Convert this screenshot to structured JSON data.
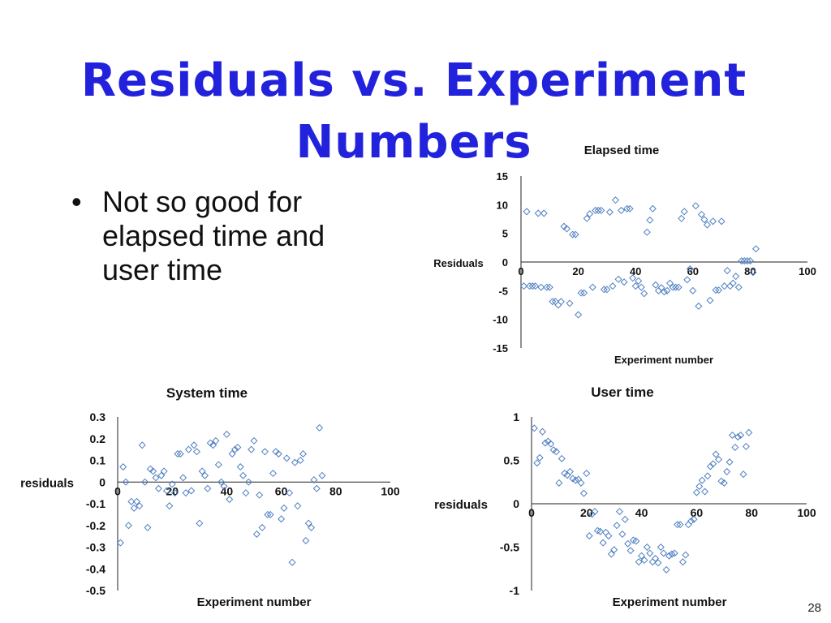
{
  "slide": {
    "title": "Residuals vs. Experiment Numbers",
    "bullets": [
      "Not so good for elapsed time and user time"
    ],
    "page_number": "28",
    "title_color": "#2222dd",
    "marker_color": "#4f7fc0"
  },
  "chart_data": [
    {
      "type": "scatter",
      "title": "Elapsed time",
      "xlabel": "Experiment number",
      "ylabel": "Residuals",
      "xlim": [
        0,
        100
      ],
      "ylim": [
        -15,
        15
      ],
      "xticks": [
        "0",
        "20",
        "40",
        "60",
        "80",
        "100"
      ],
      "yticks": [
        "15",
        "10",
        "5",
        "0",
        "-5",
        "-10",
        "-15"
      ],
      "grid": false,
      "legend": "none",
      "points": [
        [
          1,
          -4.2
        ],
        [
          2,
          8.8
        ],
        [
          3,
          -4.2
        ],
        [
          4,
          -4.2
        ],
        [
          5,
          -4.2
        ],
        [
          6,
          8.5
        ],
        [
          7,
          -4.4
        ],
        [
          8,
          8.5
        ],
        [
          9,
          -4.4
        ],
        [
          10,
          -4.4
        ],
        [
          11,
          -6.9
        ],
        [
          12,
          -6.9
        ],
        [
          13,
          -7.5
        ],
        [
          14,
          -6.9
        ],
        [
          15,
          6.2
        ],
        [
          16,
          5.8
        ],
        [
          17,
          -7.2
        ],
        [
          18,
          4.8
        ],
        [
          19,
          4.8
        ],
        [
          20,
          -9.2
        ],
        [
          21,
          -5.4
        ],
        [
          22,
          -5.4
        ],
        [
          23,
          7.6
        ],
        [
          24,
          8.4
        ],
        [
          25,
          -4.4
        ],
        [
          26,
          9.0
        ],
        [
          27,
          9.0
        ],
        [
          28,
          9.0
        ],
        [
          29,
          -4.8
        ],
        [
          30,
          -4.8
        ],
        [
          31,
          8.7
        ],
        [
          32,
          -4.2
        ],
        [
          33,
          10.8
        ],
        [
          34,
          -3.0
        ],
        [
          35,
          9.0
        ],
        [
          36,
          -3.5
        ],
        [
          37,
          9.3
        ],
        [
          38,
          9.3
        ],
        [
          39,
          -2.8
        ],
        [
          40,
          -4.2
        ],
        [
          41,
          -3.3
        ],
        [
          42,
          -4.4
        ],
        [
          43,
          -5.5
        ],
        [
          44,
          5.2
        ],
        [
          45,
          7.3
        ],
        [
          46,
          9.3
        ],
        [
          47,
          -4.0
        ],
        [
          48,
          -5.0
        ],
        [
          49,
          -4.5
        ],
        [
          50,
          -5.2
        ],
        [
          51,
          -5.0
        ],
        [
          52,
          -3.7
        ],
        [
          53,
          -4.4
        ],
        [
          54,
          -4.4
        ],
        [
          55,
          -4.4
        ],
        [
          56,
          7.6
        ],
        [
          57,
          8.8
        ],
        [
          58,
          -3.1
        ],
        [
          59,
          -1.2
        ],
        [
          60,
          -5.0
        ],
        [
          61,
          9.8
        ],
        [
          62,
          -7.7
        ],
        [
          63,
          8.3
        ],
        [
          64,
          7.4
        ],
        [
          65,
          6.5
        ],
        [
          66,
          -6.7
        ],
        [
          67,
          7.1
        ],
        [
          68,
          -4.9
        ],
        [
          69,
          -4.9
        ],
        [
          70,
          7.1
        ],
        [
          71,
          -4.2
        ],
        [
          72,
          -1.5
        ],
        [
          73,
          -4.2
        ],
        [
          74,
          -3.7
        ],
        [
          75,
          -2.5
        ],
        [
          76,
          -4.4
        ],
        [
          77,
          0.2
        ],
        [
          78,
          0.2
        ],
        [
          79,
          0.2
        ],
        [
          80,
          0.2
        ],
        [
          81,
          -1.8
        ],
        [
          82,
          2.3
        ]
      ]
    },
    {
      "type": "scatter",
      "title": "System time",
      "xlabel": "Experiment number",
      "ylabel": "residuals",
      "xlim": [
        0,
        100
      ],
      "ylim": [
        -0.5,
        0.3
      ],
      "xticks": [
        "0",
        "20",
        "40",
        "60",
        "80",
        "100"
      ],
      "yticks": [
        "0.3",
        "0.2",
        "0.1",
        "0",
        "-0.1",
        "-0.2",
        "-0.3",
        "-0.4",
        "-0.5"
      ],
      "grid": false,
      "legend": "none",
      "points": [
        [
          1,
          -0.28
        ],
        [
          2,
          0.07
        ],
        [
          3,
          0.0
        ],
        [
          4,
          -0.2
        ],
        [
          5,
          -0.09
        ],
        [
          6,
          -0.12
        ],
        [
          7,
          -0.09
        ],
        [
          8,
          -0.11
        ],
        [
          9,
          0.17
        ],
        [
          10,
          0.0
        ],
        [
          11,
          -0.21
        ],
        [
          12,
          0.06
        ],
        [
          13,
          0.05
        ],
        [
          14,
          0.02
        ],
        [
          15,
          -0.03
        ],
        [
          16,
          0.03
        ],
        [
          17,
          0.05
        ],
        [
          18,
          -0.04
        ],
        [
          19,
          -0.11
        ],
        [
          20,
          -0.01
        ],
        [
          21,
          -0.05
        ],
        [
          22,
          0.13
        ],
        [
          23,
          0.13
        ],
        [
          24,
          0.02
        ],
        [
          25,
          -0.05
        ],
        [
          26,
          0.15
        ],
        [
          27,
          -0.04
        ],
        [
          28,
          0.17
        ],
        [
          29,
          0.14
        ],
        [
          30,
          -0.19
        ],
        [
          31,
          0.05
        ],
        [
          32,
          0.03
        ],
        [
          33,
          -0.03
        ],
        [
          34,
          0.18
        ],
        [
          35,
          0.17
        ],
        [
          36,
          0.19
        ],
        [
          37,
          0.08
        ],
        [
          38,
          0.0
        ],
        [
          39,
          -0.02
        ],
        [
          40,
          0.22
        ],
        [
          41,
          -0.08
        ],
        [
          42,
          0.13
        ],
        [
          43,
          0.15
        ],
        [
          44,
          0.16
        ],
        [
          45,
          0.07
        ],
        [
          46,
          0.03
        ],
        [
          47,
          -0.05
        ],
        [
          48,
          0.0
        ],
        [
          49,
          0.15
        ],
        [
          50,
          0.19
        ],
        [
          51,
          -0.24
        ],
        [
          52,
          -0.06
        ],
        [
          53,
          -0.21
        ],
        [
          54,
          0.14
        ],
        [
          55,
          -0.15
        ],
        [
          56,
          -0.15
        ],
        [
          57,
          0.04
        ],
        [
          58,
          0.14
        ],
        [
          59,
          0.13
        ],
        [
          60,
          -0.17
        ],
        [
          61,
          -0.12
        ],
        [
          62,
          0.11
        ],
        [
          63,
          -0.05
        ],
        [
          64,
          -0.37
        ],
        [
          65,
          0.09
        ],
        [
          66,
          -0.11
        ],
        [
          67,
          0.1
        ],
        [
          68,
          0.13
        ],
        [
          69,
          -0.27
        ],
        [
          70,
          -0.19
        ],
        [
          71,
          -0.21
        ],
        [
          72,
          0.01
        ],
        [
          73,
          -0.03
        ],
        [
          74,
          0.25
        ],
        [
          75,
          0.03
        ]
      ]
    },
    {
      "type": "scatter",
      "title": "User time",
      "xlabel": "Experiment number",
      "ylabel": "residuals",
      "xlim": [
        0,
        100
      ],
      "ylim": [
        -1,
        1
      ],
      "xticks": [
        "0",
        "20",
        "40",
        "60",
        "80",
        "100"
      ],
      "yticks": [
        "1",
        "0.5",
        "0",
        "-0.5",
        "-1"
      ],
      "grid": false,
      "legend": "none",
      "points": [
        [
          1,
          0.87
        ],
        [
          2,
          0.47
        ],
        [
          3,
          0.53
        ],
        [
          4,
          0.83
        ],
        [
          5,
          0.7
        ],
        [
          6,
          0.72
        ],
        [
          7,
          0.69
        ],
        [
          8,
          0.62
        ],
        [
          9,
          0.6
        ],
        [
          10,
          0.24
        ],
        [
          11,
          0.52
        ],
        [
          12,
          0.35
        ],
        [
          13,
          0.33
        ],
        [
          14,
          0.37
        ],
        [
          15,
          0.29
        ],
        [
          16,
          0.27
        ],
        [
          17,
          0.28
        ],
        [
          18,
          0.24
        ],
        [
          19,
          0.12
        ],
        [
          20,
          0.35
        ],
        [
          21,
          -0.37
        ],
        [
          22,
          -0.12
        ],
        [
          23,
          -0.09
        ],
        [
          24,
          -0.31
        ],
        [
          25,
          -0.32
        ],
        [
          26,
          -0.45
        ],
        [
          27,
          -0.33
        ],
        [
          28,
          -0.37
        ],
        [
          29,
          -0.58
        ],
        [
          30,
          -0.53
        ],
        [
          31,
          -0.25
        ],
        [
          32,
          -0.09
        ],
        [
          33,
          -0.35
        ],
        [
          34,
          -0.18
        ],
        [
          35,
          -0.46
        ],
        [
          36,
          -0.54
        ],
        [
          37,
          -0.42
        ],
        [
          38,
          -0.43
        ],
        [
          39,
          -0.67
        ],
        [
          40,
          -0.6
        ],
        [
          41,
          -0.65
        ],
        [
          42,
          -0.5
        ],
        [
          43,
          -0.57
        ],
        [
          44,
          -0.67
        ],
        [
          45,
          -0.63
        ],
        [
          46,
          -0.68
        ],
        [
          47,
          -0.5
        ],
        [
          48,
          -0.57
        ],
        [
          49,
          -0.76
        ],
        [
          50,
          -0.6
        ],
        [
          51,
          -0.58
        ],
        [
          52,
          -0.57
        ],
        [
          53,
          -0.24
        ],
        [
          54,
          -0.24
        ],
        [
          55,
          -0.67
        ],
        [
          56,
          -0.59
        ],
        [
          57,
          -0.24
        ],
        [
          58,
          -0.2
        ],
        [
          59,
          -0.18
        ],
        [
          60,
          0.13
        ],
        [
          61,
          0.2
        ],
        [
          62,
          0.27
        ],
        [
          63,
          0.14
        ],
        [
          64,
          0.32
        ],
        [
          65,
          0.43
        ],
        [
          66,
          0.46
        ],
        [
          67,
          0.57
        ],
        [
          68,
          0.51
        ],
        [
          69,
          0.26
        ],
        [
          70,
          0.24
        ],
        [
          71,
          0.37
        ],
        [
          72,
          0.48
        ],
        [
          73,
          0.79
        ],
        [
          74,
          0.65
        ],
        [
          75,
          0.77
        ],
        [
          76,
          0.79
        ],
        [
          77,
          0.34
        ],
        [
          78,
          0.66
        ],
        [
          79,
          0.82
        ]
      ]
    }
  ]
}
